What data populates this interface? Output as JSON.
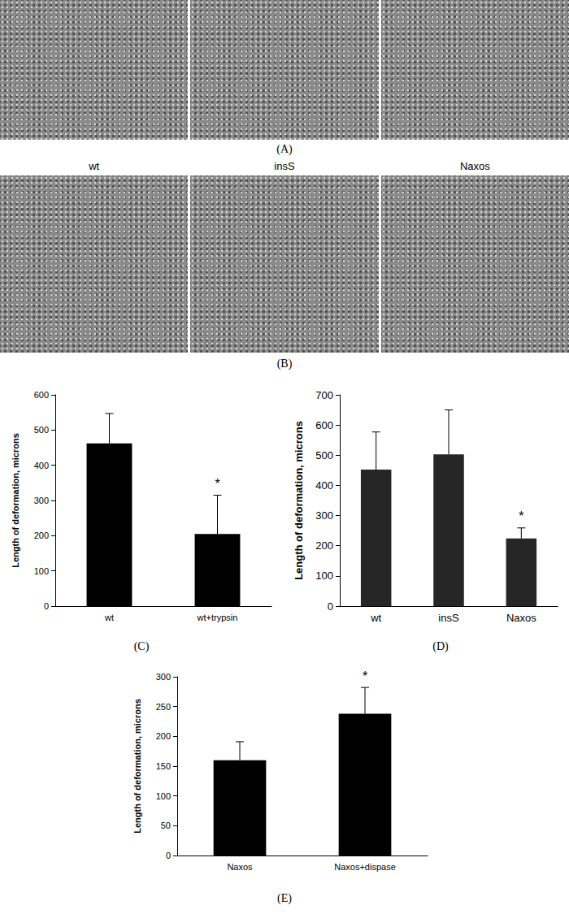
{
  "figure": {
    "panels": [
      {
        "panel_label": "(A)",
        "images": 3
      },
      {
        "panel_label": "(B)",
        "image_titles": [
          "wt",
          "insS",
          "Naxos"
        ]
      }
    ]
  },
  "chart_data": [
    {
      "type": "bar",
      "panel_label": "(C)",
      "y_label": "Length of deformation, microns",
      "categories": [
        "wt",
        "wt+trypsin"
      ],
      "values": [
        462,
        205
      ],
      "errors": [
        85,
        110
      ],
      "annotations": [
        {
          "category": "wt+trypsin",
          "text": "*"
        }
      ],
      "color": "#000000",
      "ylim": [
        0,
        600
      ],
      "yticks": [
        0,
        100,
        200,
        300,
        400,
        500,
        600
      ],
      "grid": false
    },
    {
      "type": "bar",
      "panel_label": "(D)",
      "y_label": "Length of deformation, microns",
      "categories": [
        "wt",
        "insS",
        "Naxos"
      ],
      "values": [
        452,
        503,
        224
      ],
      "errors": [
        125,
        147,
        35
      ],
      "annotations": [
        {
          "category": "Naxos",
          "text": "*"
        }
      ],
      "color": "#262626",
      "ylim": [
        0,
        700
      ],
      "yticks": [
        0,
        100,
        200,
        300,
        400,
        500,
        600,
        700
      ],
      "grid": false
    },
    {
      "type": "bar",
      "panel_label": "(E)",
      "y_label": "Length of deformation, microns",
      "categories": [
        "Naxos",
        "Naxos+dispase"
      ],
      "values": [
        160,
        238
      ],
      "errors": [
        31,
        44
      ],
      "annotations": [
        {
          "category": "Naxos+dispase",
          "text": "*"
        }
      ],
      "color": "#000000",
      "ylim": [
        0,
        300
      ],
      "yticks": [
        0,
        50,
        100,
        150,
        200,
        250,
        300
      ],
      "grid": false
    }
  ]
}
